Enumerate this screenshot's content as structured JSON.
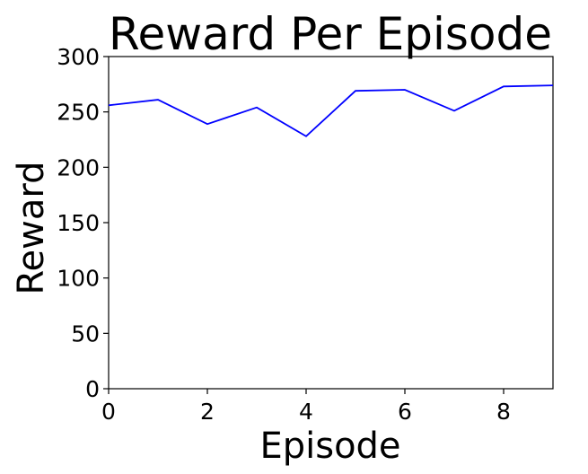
{
  "chart_data": {
    "type": "line",
    "title": "Reward Per Episode",
    "xlabel": "Episode",
    "ylabel": "Reward",
    "xlim": [
      0,
      9
    ],
    "ylim": [
      0,
      300
    ],
    "xticks": [
      0,
      2,
      4,
      6,
      8
    ],
    "yticks": [
      0,
      50,
      100,
      150,
      200,
      250,
      300
    ],
    "grid": false,
    "series": [
      {
        "color": "#0000ff",
        "x": [
          0,
          1,
          2,
          3,
          4,
          5,
          6,
          7,
          8,
          9
        ],
        "y": [
          256,
          261,
          239,
          254,
          228,
          269,
          270,
          251,
          273,
          274
        ]
      }
    ]
  }
}
